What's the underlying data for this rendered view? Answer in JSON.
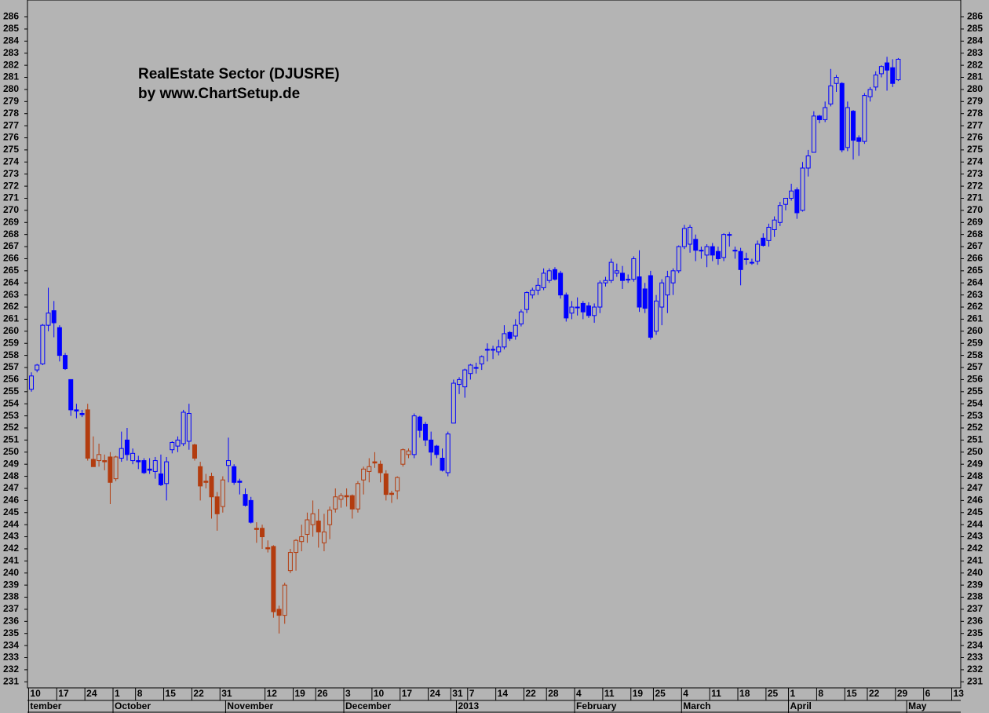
{
  "chart_data": {
    "type": "candlestick",
    "title": "RealEstate Sector (DJUSRE)",
    "subtitle": "by www.ChartSetup.de",
    "ylim": [
      230.5,
      287.4
    ],
    "yticks": [
      231,
      232,
      233,
      234,
      235,
      236,
      237,
      238,
      239,
      240,
      241,
      242,
      243,
      244,
      245,
      246,
      247,
      248,
      249,
      250,
      251,
      252,
      253,
      254,
      255,
      256,
      257,
      258,
      259,
      260,
      261,
      262,
      263,
      264,
      265,
      266,
      267,
      268,
      269,
      270,
      271,
      272,
      273,
      274,
      275,
      276,
      277,
      278,
      279,
      280,
      281,
      282,
      283,
      284,
      285,
      286
    ],
    "xlim": [
      -0.7,
      165.1
    ],
    "xticks": [
      {
        "value": 0,
        "label": "10"
      },
      {
        "value": 5,
        "label": "17"
      },
      {
        "value": 10,
        "label": "24"
      },
      {
        "value": 15,
        "label": "1"
      },
      {
        "value": 19,
        "label": "8"
      },
      {
        "value": 24,
        "label": "15"
      },
      {
        "value": 29,
        "label": "22"
      },
      {
        "value": 34,
        "label": "31"
      },
      {
        "value": 42,
        "label": "12"
      },
      {
        "value": 47,
        "label": "19"
      },
      {
        "value": 51,
        "label": "26"
      },
      {
        "value": 56,
        "label": "3"
      },
      {
        "value": 61,
        "label": "10"
      },
      {
        "value": 66,
        "label": "17"
      },
      {
        "value": 71,
        "label": "24"
      },
      {
        "value": 75,
        "label": "31"
      },
      {
        "value": 78,
        "label": "7"
      },
      {
        "value": 83,
        "label": "14"
      },
      {
        "value": 88,
        "label": "22"
      },
      {
        "value": 92,
        "label": "28"
      },
      {
        "value": 97,
        "label": "4"
      },
      {
        "value": 102,
        "label": "11"
      },
      {
        "value": 107,
        "label": "19"
      },
      {
        "value": 111,
        "label": "25"
      },
      {
        "value": 116,
        "label": "4"
      },
      {
        "value": 121,
        "label": "11"
      },
      {
        "value": 126,
        "label": "18"
      },
      {
        "value": 131,
        "label": "25"
      },
      {
        "value": 135,
        "label": "1"
      },
      {
        "value": 140,
        "label": "8"
      },
      {
        "value": 145,
        "label": "15"
      },
      {
        "value": 149,
        "label": "22"
      },
      {
        "value": 154,
        "label": "29"
      },
      {
        "value": 159,
        "label": "6"
      },
      {
        "value": 164,
        "label": "13"
      }
    ],
    "month_ticks": [
      {
        "value": 0,
        "label": "tember"
      },
      {
        "value": 15,
        "label": "October"
      },
      {
        "value": 35,
        "label": "November"
      },
      {
        "value": 56,
        "label": "December"
      },
      {
        "value": 76,
        "label": "2013"
      },
      {
        "value": 97,
        "label": "February"
      },
      {
        "value": 116,
        "label": "March"
      },
      {
        "value": 135,
        "label": "April"
      },
      {
        "value": 156,
        "label": "May"
      }
    ],
    "series": [
      {
        "color": "#0000ff",
        "open": [
          255.2,
          256.8,
          257.3,
          260.5,
          261.7,
          260.3,
          258,
          256,
          253.5,
          253.2
        ],
        "high": [
          256.6,
          257.3,
          260.6,
          263.6,
          262.5,
          260.5,
          258.2,
          256,
          254,
          253.5
        ],
        "low": [
          255,
          256.6,
          257.2,
          260,
          259.5,
          257.5,
          256.8,
          253,
          252.8,
          252.9
        ],
        "close": [
          256.3,
          257.2,
          260.5,
          261.5,
          260.7,
          258,
          256.9,
          253.5,
          253.4,
          253.1
        ]
      },
      {
        "color": "#b33c0f",
        "open": [
          253.5,
          249.4,
          249.3,
          249.3,
          249.6,
          247.8
        ],
        "high": [
          254,
          251.3,
          250.7,
          249.8,
          250,
          249.7
        ],
        "low": [
          249.3,
          248.8,
          248.8,
          248.5,
          245.7,
          247.6
        ],
        "close": [
          249.5,
          248.8,
          249.8,
          249.2,
          247.5,
          249.6
        ]
      },
      {
        "color": "#0000ff",
        "open": [
          249.5,
          251,
          249.3,
          249.3,
          249.3,
          248.6,
          248.4,
          248.2,
          247.4,
          250.2,
          250.5,
          250.7,
          250.9
        ],
        "high": [
          251.7,
          252,
          250.3,
          249.7,
          249.5,
          249.5,
          249.6,
          249.8,
          249.6,
          250.9,
          251.3,
          253.5,
          254
        ],
        "low": [
          249.2,
          249.3,
          249,
          248.6,
          248.2,
          248.2,
          247.8,
          247.2,
          246,
          249.9,
          250,
          250.5,
          250.2
        ],
        "close": [
          250.3,
          249.8,
          249.9,
          249.2,
          248.3,
          248.5,
          249.3,
          247.3,
          249.2,
          250.8,
          251,
          253.3,
          253.2
        ]
      },
      {
        "color": "#b33c0f",
        "open": [
          250.6,
          248.8,
          247.6,
          248,
          246.3,
          245.5
        ],
        "high": [
          250.7,
          249.2,
          248.2,
          248.3,
          246.7,
          248
        ],
        "low": [
          249.3,
          246,
          247,
          244.5,
          243.5,
          245
        ],
        "close": [
          249.5,
          247.2,
          247.5,
          246.3,
          244.9,
          247.7
        ]
      },
      {
        "color": "#0000ff",
        "open": [
          248.9,
          248.8,
          247.6,
          246.5,
          246
        ],
        "high": [
          251.2,
          249,
          247.8,
          247,
          246.3
        ],
        "low": [
          247.5,
          247.3,
          246.5,
          245.5,
          244.1
        ],
        "close": [
          249.3,
          247.5,
          247.5,
          245.6,
          244.2
        ]
      },
      {
        "color": "#b33c0f",
        "open": [
          243.7,
          243.7,
          242.1,
          242.2,
          237,
          236.5,
          240.2,
          241.7,
          242.6,
          243.2,
          244,
          244.3,
          242.5,
          244,
          245.3,
          246.1,
          246.4,
          246.4,
          245.3,
          247.7,
          248.4,
          249.2,
          249,
          248.2,
          246.6,
          246.8,
          249,
          249.8
        ],
        "high": [
          244.2,
          244,
          242.7,
          242.3,
          237.3,
          239.2,
          242,
          242.8,
          244,
          245,
          246,
          245.3,
          244.9,
          245.5,
          247,
          246.6,
          247,
          246.5,
          247.6,
          248.8,
          249.5,
          250,
          249.3,
          248.5,
          246.8,
          248,
          250.3,
          250.3
        ],
        "low": [
          242.5,
          242,
          241.7,
          236.3,
          235,
          235.8,
          240,
          240.2,
          241.8,
          242.5,
          243,
          242.1,
          241.8,
          242.8,
          245,
          245.4,
          245.5,
          244.5,
          245,
          246.5,
          247.5,
          248.7,
          247.5,
          246,
          245.8,
          246.1,
          248.8,
          249.5
        ],
        "close": [
          243.6,
          243,
          242,
          236.8,
          236.5,
          239,
          241.7,
          242.7,
          243,
          244.4,
          244.9,
          243.4,
          243.4,
          245.2,
          246.3,
          246.4,
          246.3,
          245.3,
          247.4,
          248.6,
          248.8,
          249.1,
          248.3,
          246.5,
          246.5,
          247.9,
          250.2,
          250.1
        ]
      },
      {
        "color": "#0000ff",
        "open": [
          249.8,
          252.9,
          252.3,
          251,
          250.5,
          249.5,
          248.3,
          252.4,
          255.6,
          255.4,
          256.5,
          257,
          257.3,
          258.5,
          258.5,
          258.3,
          258.7,
          259.9,
          259.6,
          260.6,
          261.8,
          263,
          263.4,
          263.6,
          264.2,
          265.1,
          264.8,
          263,
          261.5,
          262,
          262.3,
          262.1,
          261.3,
          262,
          264,
          264.2,
          264.8,
          264.8,
          264.3,
          264.3,
          264.5,
          263.5,
          264.6,
          260,
          262,
          263,
          264,
          265,
          267,
          267.2,
          267.6,
          266.7,
          266.3,
          267,
          266.6,
          266.1,
          268,
          266.7,
          266.6,
          266,
          265.7,
          265.8,
          267.7,
          267.5,
          268.4,
          269,
          270.5,
          271,
          271.7,
          270,
          273.5,
          274.8,
          277.8,
          277.5,
          278.8,
          280.5,
          280.5,
          275.2,
          278.2,
          276,
          275.7,
          279.4,
          280.2,
          281.3,
          282.2,
          281.8,
          280.8
        ],
        "high": [
          253.2,
          253,
          252.5,
          251.7,
          250.6,
          250.3,
          251.7,
          256,
          256.2,
          256.9,
          257.3,
          257.4,
          258,
          259,
          258.8,
          259.3,
          260.5,
          260,
          261,
          261.8,
          263.3,
          263.6,
          264.4,
          265.2,
          265.2,
          265.3,
          265,
          263.2,
          262.5,
          262.8,
          262.5,
          262.4,
          262.3,
          264.2,
          264.5,
          266,
          265.6,
          265.4,
          264.7,
          266.2,
          266.7,
          264,
          265,
          263,
          264.3,
          265,
          265.2,
          267.1,
          268.8,
          268.8,
          268,
          267,
          267.2,
          267.3,
          267,
          268.1,
          268.2,
          267,
          266.9,
          266.5,
          266,
          267.5,
          268.1,
          268.9,
          269.5,
          270.7,
          271,
          272.2,
          271.9,
          274,
          275,
          278.2,
          277.9,
          279,
          281.7,
          281.2,
          280.6,
          279,
          278.3,
          276.2,
          279.7,
          280.2,
          281.5,
          282,
          282.7,
          282.5,
          282.6
        ],
        "low": [
          249.5,
          251.2,
          250.5,
          248.9,
          249.5,
          248.4,
          248,
          252.4,
          254.8,
          254.5,
          256,
          256.5,
          256.8,
          257.5,
          257.7,
          258,
          258.5,
          259.2,
          259.3,
          260.4,
          261.5,
          262.7,
          263,
          263.4,
          264,
          264.2,
          262.7,
          260.8,
          261,
          261.3,
          261,
          261.1,
          260.7,
          261.5,
          263.7,
          264,
          264.5,
          263.5,
          264,
          264.1,
          261.6,
          261.5,
          259.3,
          259.7,
          260.5,
          261.5,
          263,
          264.8,
          266.8,
          266.5,
          265.8,
          266,
          265.3,
          265.8,
          265.5,
          265.8,
          267,
          266,
          263.8,
          265.5,
          265.5,
          265.5,
          267,
          267,
          267.8,
          268.7,
          270,
          270.8,
          269.3,
          269.9,
          272.8,
          274.8,
          277.2,
          277.3,
          278.6,
          279.8,
          274.8,
          274.9,
          274.2,
          274.5,
          275.5,
          279,
          279.9,
          281,
          279.9,
          280.2,
          280.7
        ],
        "close": [
          253,
          251.8,
          251,
          250,
          249.8,
          248.5,
          251.5,
          255.7,
          256,
          256.8,
          257.2,
          257,
          257.9,
          258.5,
          258.5,
          258.7,
          259.8,
          259.4,
          260.5,
          261.6,
          263.2,
          263.4,
          263.8,
          264.8,
          265,
          264.3,
          263,
          261.1,
          262,
          262,
          261.6,
          261.3,
          262,
          264,
          264.2,
          265.7,
          265,
          264.2,
          264.3,
          266,
          262,
          261.9,
          259.5,
          262.5,
          264,
          264.5,
          265,
          267,
          268.5,
          268.6,
          266.7,
          266.7,
          267,
          266.3,
          266,
          268,
          268,
          266.7,
          265.1,
          266,
          265.7,
          267.2,
          267.1,
          268.6,
          269.2,
          270.4,
          271,
          271.6,
          269.8,
          273.5,
          274.5,
          277.8,
          277.5,
          278.5,
          280.3,
          281,
          275,
          278.5,
          275.8,
          275.7,
          279.5,
          280,
          281.2,
          281.9,
          281.6,
          280.5,
          282.5
        ]
      }
    ]
  }
}
